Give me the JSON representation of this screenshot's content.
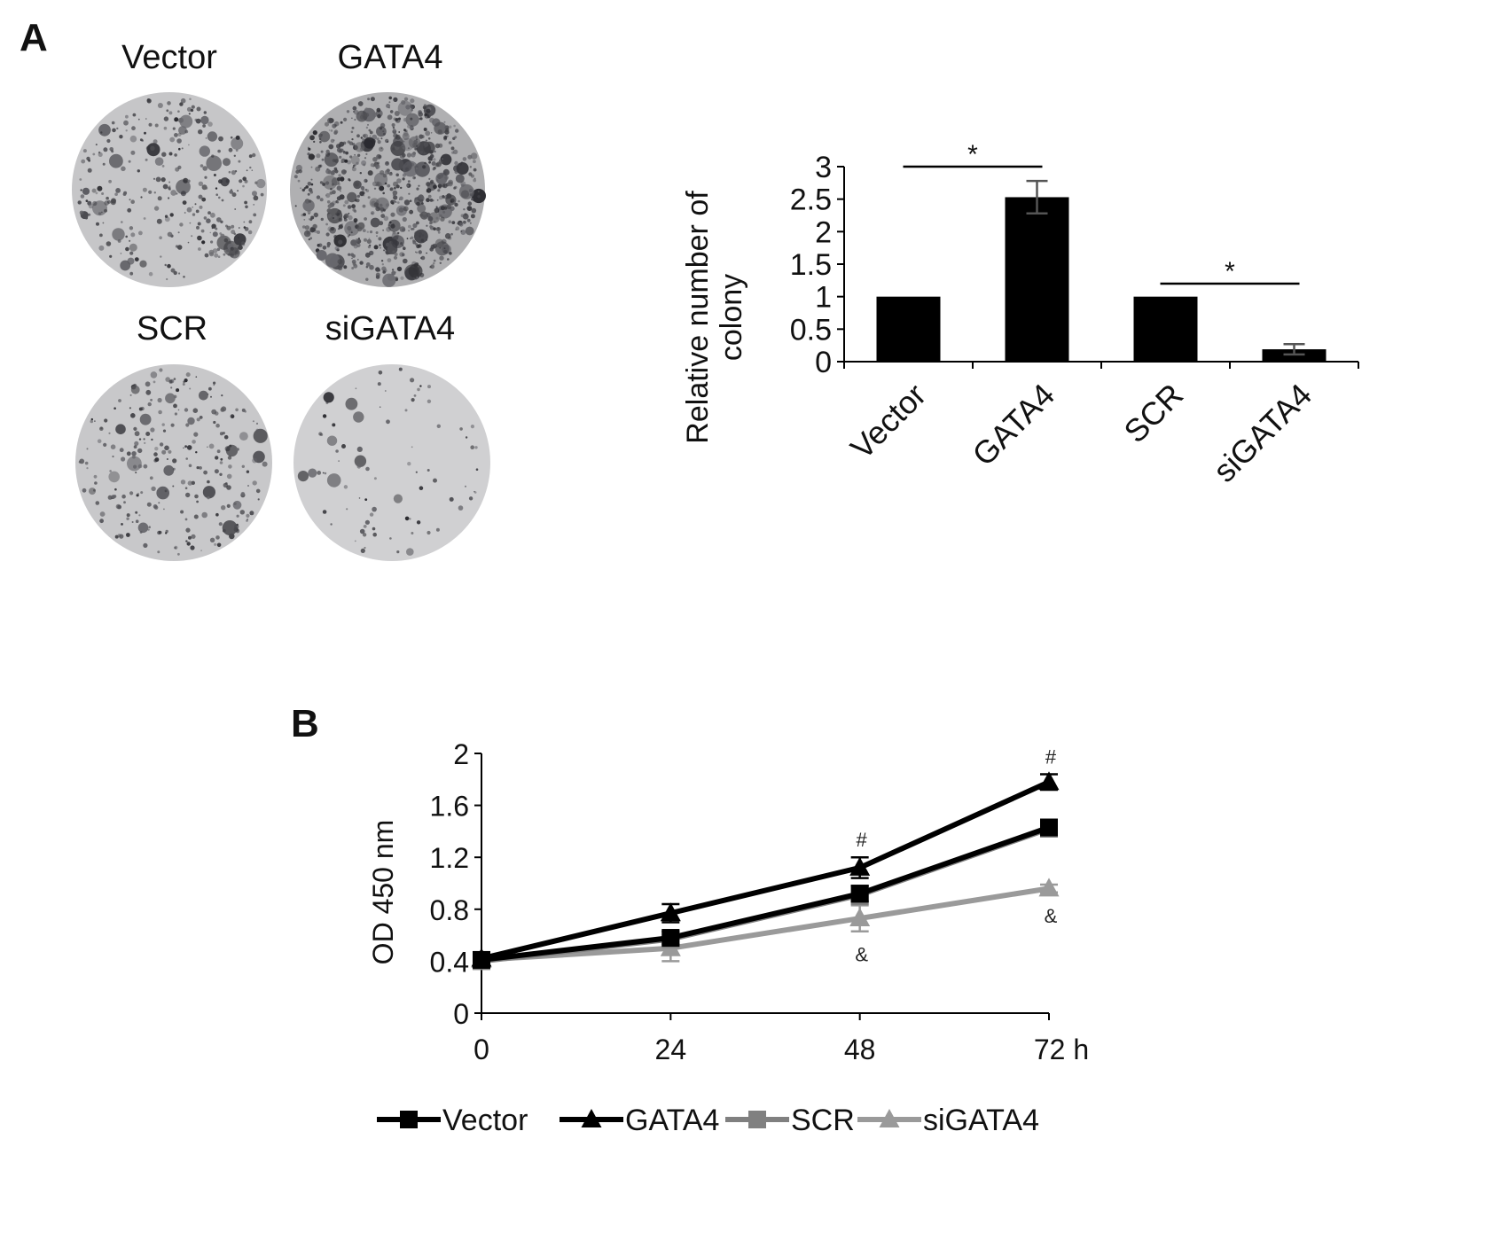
{
  "panel_a": {
    "label": "A",
    "dishes": [
      {
        "label": "Vector",
        "density": 0.3
      },
      {
        "label": "GATA4",
        "density": 0.85
      },
      {
        "label": "SCR",
        "density": 0.25
      },
      {
        "label": "siGATA4",
        "density": 0.05
      }
    ]
  },
  "panel_b": {
    "label": "B"
  },
  "chart_data": [
    {
      "type": "bar",
      "categories": [
        "Vector",
        "GATA4",
        "SCR",
        "siGATA4"
      ],
      "values": [
        1.0,
        2.53,
        1.0,
        0.19
      ],
      "errors": [
        0.0,
        0.25,
        0.0,
        0.08
      ],
      "title": "",
      "xlabel": "",
      "ylabel": "Relative number of colony",
      "ylim": [
        0,
        3
      ],
      "yticks": [
        "0",
        "0.5",
        "1",
        "1.5",
        "2",
        "2.5",
        "3"
      ],
      "significance": [
        {
          "between": [
            "Vector",
            "GATA4"
          ],
          "label": "*"
        },
        {
          "between": [
            "SCR",
            "siGATA4"
          ],
          "label": "*"
        }
      ],
      "color": "#000000"
    },
    {
      "type": "line",
      "x": [
        0,
        24,
        48,
        72
      ],
      "xticks": [
        "0",
        "24",
        "48",
        "72 h"
      ],
      "ylabel": "OD 450 nm",
      "xlabel": "",
      "ylim": [
        0,
        2
      ],
      "yticks": [
        "0",
        "0.4",
        "0.8",
        "1.2",
        "1.6",
        "2"
      ],
      "series": [
        {
          "name": "Vector",
          "values": [
            0.41,
            0.58,
            0.92,
            1.43
          ],
          "errors": [
            0.04,
            0.05,
            0.06,
            0.05
          ],
          "color": "#000000",
          "marker": "square"
        },
        {
          "name": "GATA4",
          "values": [
            0.42,
            0.77,
            1.12,
            1.78
          ],
          "errors": [
            0.04,
            0.07,
            0.08,
            0.06
          ],
          "color": "#000000",
          "marker": "triangle"
        },
        {
          "name": "SCR",
          "values": [
            0.4,
            0.57,
            0.91,
            1.42
          ],
          "errors": [
            0.04,
            0.06,
            0.07,
            0.05
          ],
          "color": "#808080",
          "marker": "square"
        },
        {
          "name": "siGATA4",
          "values": [
            0.41,
            0.5,
            0.73,
            0.96
          ],
          "errors": [
            0.04,
            0.1,
            0.1,
            0.03
          ],
          "color": "#9a9a9a",
          "marker": "triangle"
        }
      ],
      "annotations": [
        {
          "x": 48,
          "text": "#",
          "position": "above"
        },
        {
          "x": 72,
          "text": "#",
          "position": "above"
        },
        {
          "x": 48,
          "text": "&",
          "position": "below"
        },
        {
          "x": 72,
          "text": "&",
          "position": "below"
        }
      ],
      "legend": "bottom"
    }
  ]
}
